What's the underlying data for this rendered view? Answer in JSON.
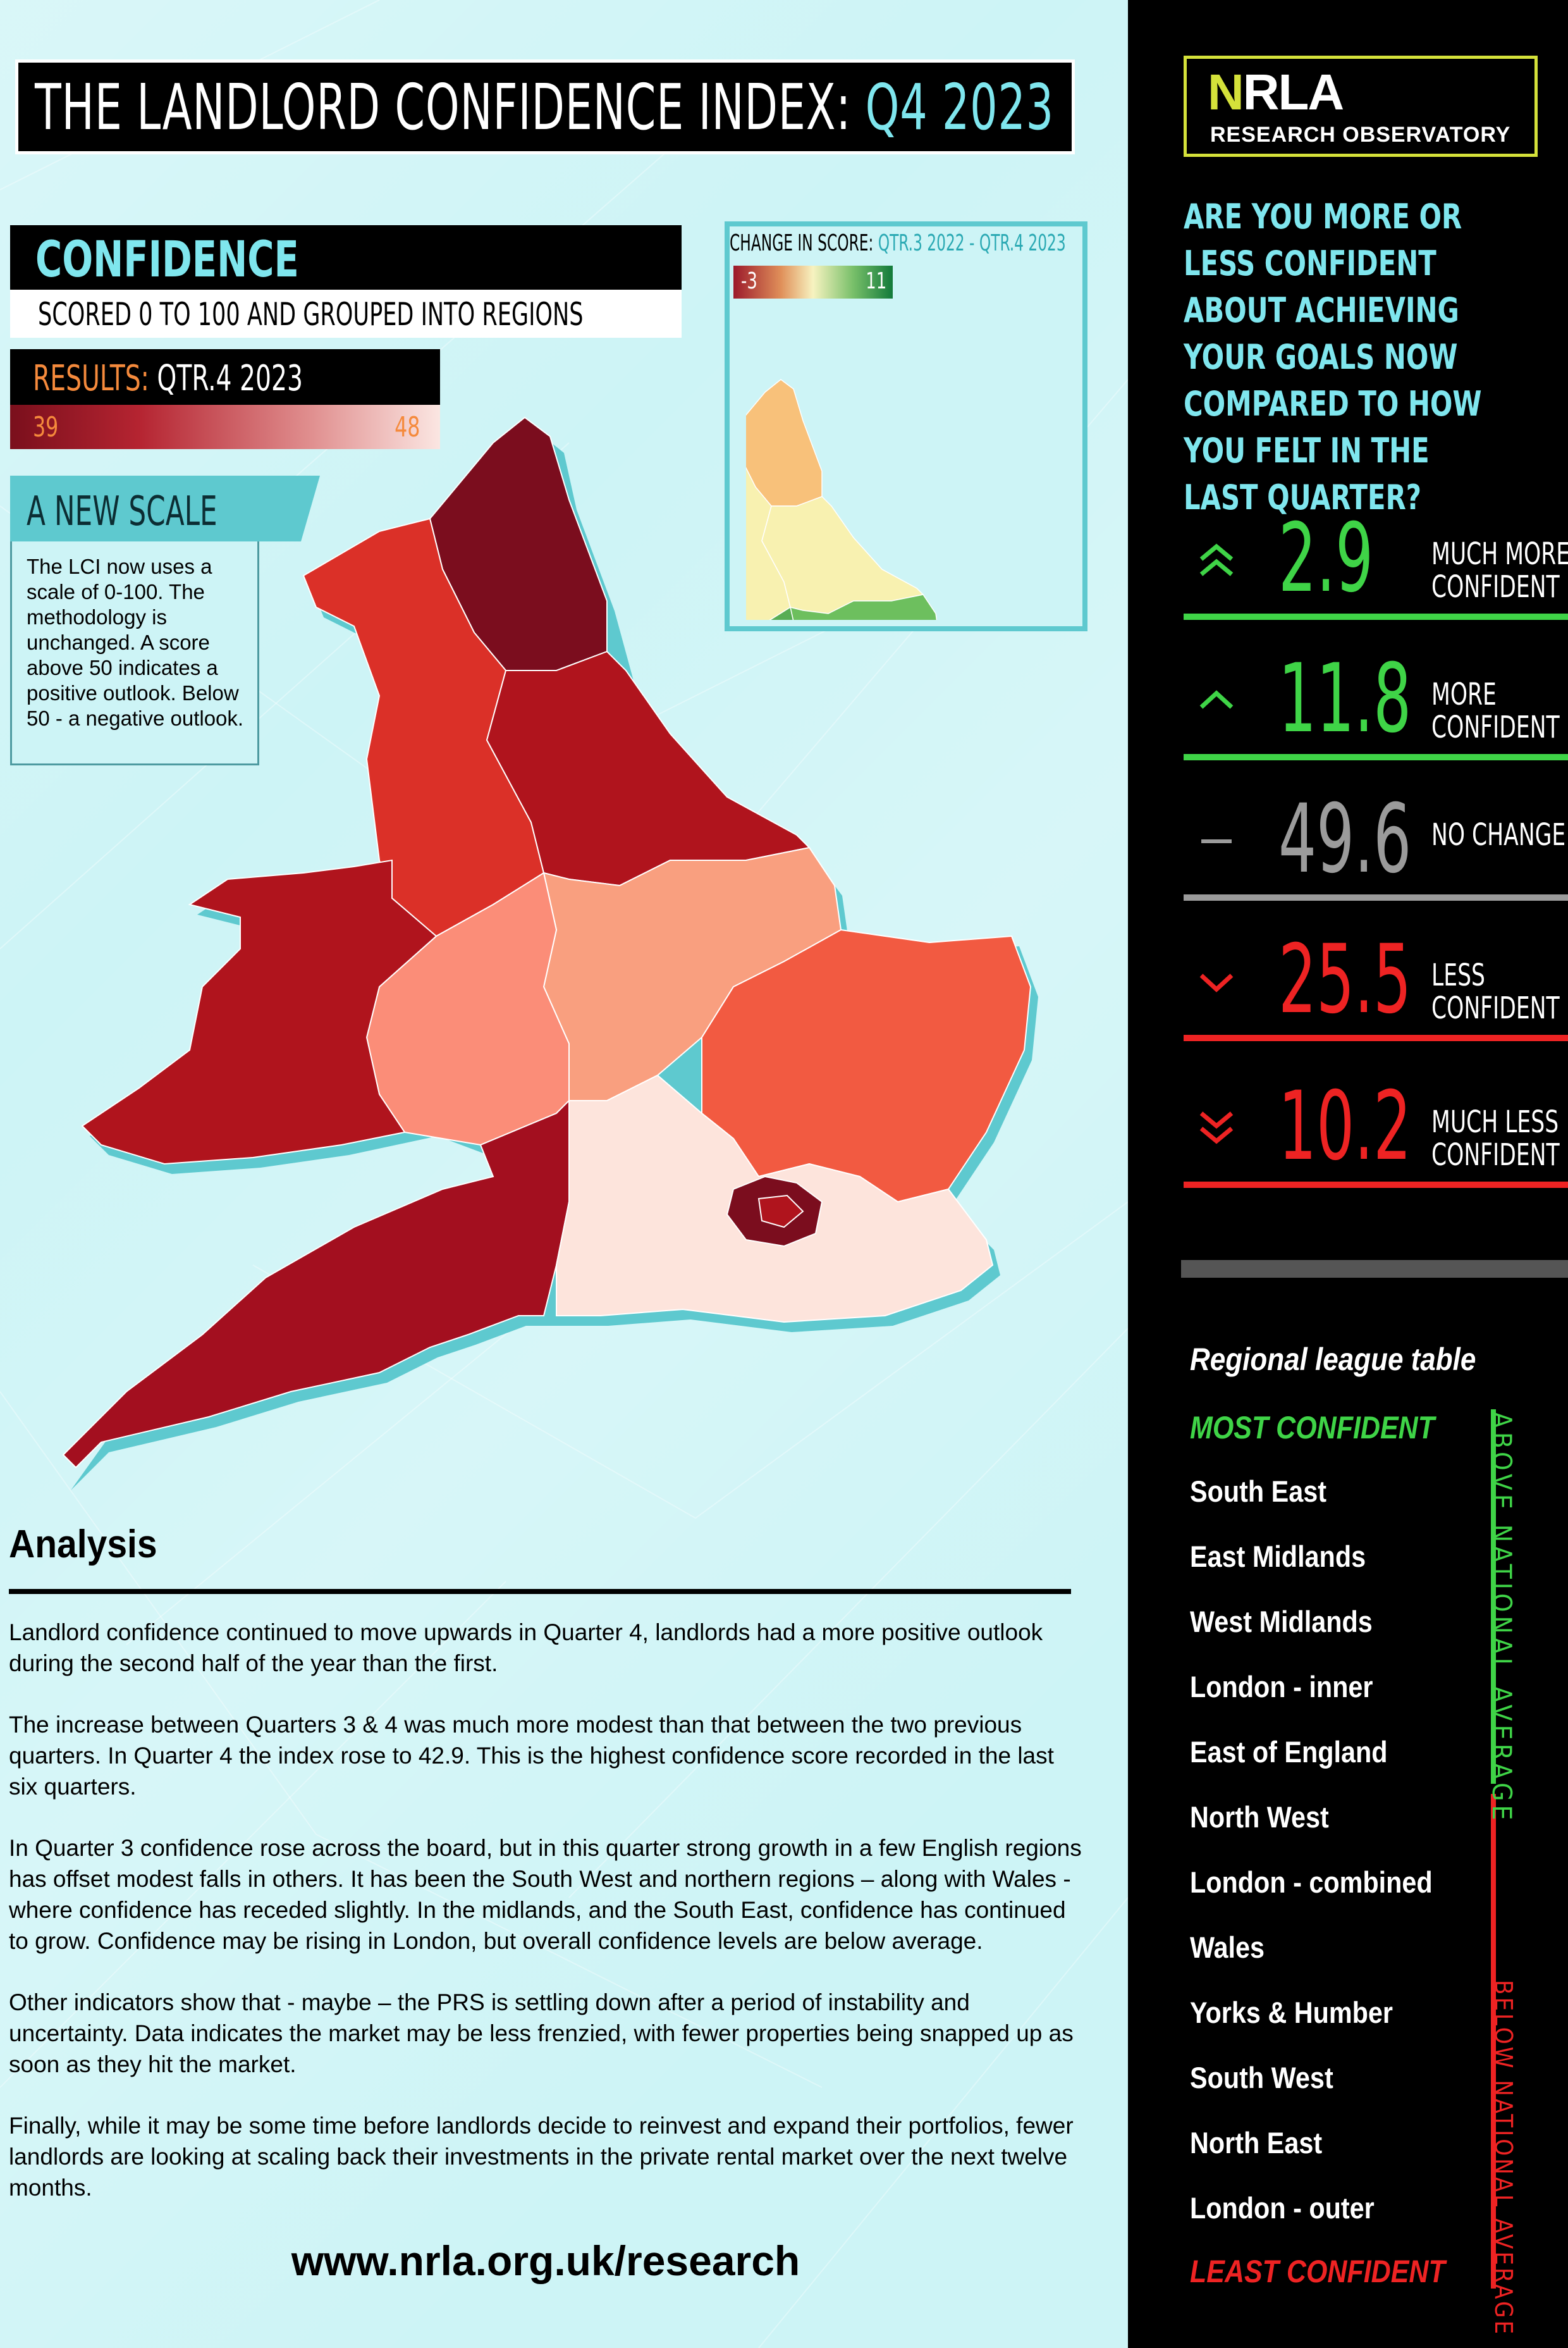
{
  "title": {
    "main": "THE LANDLORD CONFIDENCE INDEX: ",
    "quarter": "Q4 2023"
  },
  "confidence": {
    "heading": "CONFIDENCE",
    "subheading": "SCORED 0 TO 100 AND GROUPED INTO REGIONS",
    "results_label": "RESULTS:",
    "results_period": "QTR.4 2023",
    "scale_min": "39",
    "scale_max": "48"
  },
  "new_scale": {
    "heading": "A NEW SCALE",
    "body": "The LCI now uses a scale of 0-100. The methodology is unchanged. A score above 50 indicates a positive outlook. Below 50 - a negative outlook."
  },
  "inset": {
    "title_label": "CHANGE IN SCORE:",
    "title_range": "QTR.3 2022 - QTR.4 2023",
    "min": "-3",
    "max": "11"
  },
  "colors": {
    "accent_cyan": "#7fe6ee",
    "green": "#3fd447",
    "red": "#ee2323",
    "grey": "#9b9b9b",
    "logo_yellow": "#d4e13a"
  },
  "analysis": {
    "heading": "Analysis",
    "paragraphs": [
      "Landlord confidence continued to move upwards in Quarter 4, landlords had a more positive outlook during the second half of the year than the first.",
      "The increase between Quarters 3 & 4 was much more modest than that between the two previous quarters. In Quarter 4 the index rose to 42.9. This is the highest confidence score recorded in the last six quarters.",
      "In Quarter 3 confidence rose across the board, but in this quarter strong growth in a few English regions has offset modest falls in others. It has been the South West and northern regions – along with Wales - where confidence has receded slightly. In the midlands, and the South East, confidence has continued to grow. Confidence may be rising in London, but overall confidence levels are below average.",
      "Other indicators show that - maybe – the PRS is settling down after a period of instability and uncertainty.  Data indicates the market may be less frenzied, with fewer properties being snapped up as soon as they hit the market.",
      "Finally, while it may be some time before landlords decide to reinvest and expand their portfolios, fewer landlords are looking at scaling back their investments in the private rental market over the next twelve months."
    ],
    "website": "www.nrla.org.uk/research"
  },
  "logo": {
    "mark": "NRLA",
    "subtitle": "RESEARCH OBSERVATORY"
  },
  "question": "ARE YOU MORE OR LESS CONFIDENT ABOUT ACHIEVING YOUR GOALS NOW COMPARED TO HOW YOU FELT IN THE LAST QUARTER?",
  "stats": [
    {
      "value": "2.9",
      "label": "MUCH MORE CONFIDENT",
      "icon": "double-chevron-up-icon",
      "color": "#3fd447"
    },
    {
      "value": "11.8",
      "label": "MORE CONFIDENT",
      "icon": "chevron-up-icon",
      "color": "#3fd447"
    },
    {
      "value": "49.6",
      "label": "NO CHANGE",
      "icon": "dash-icon",
      "color": "#9b9b9b"
    },
    {
      "value": "25.5",
      "label": "LESS CONFIDENT",
      "icon": "chevron-down-icon",
      "color": "#ee2323"
    },
    {
      "value": "10.2",
      "label": "MUCH LESS CONFIDENT",
      "icon": "double-chevron-down-icon",
      "color": "#ee2323"
    }
  ],
  "league": {
    "title": "Regional league table",
    "most": "MOST CONFIDENT",
    "least": "LEAST CONFIDENT",
    "above": "ABOVE NATIONAL AVERAGE",
    "below": "BELOW NATIONAL AVERAGE",
    "regions": [
      "South East",
      "East Midlands",
      "West Midlands",
      "London - inner",
      "East of England",
      "North West",
      "London - combined",
      "Wales",
      "Yorks & Humber",
      "South West",
      "North East",
      "London - outer"
    ]
  }
}
